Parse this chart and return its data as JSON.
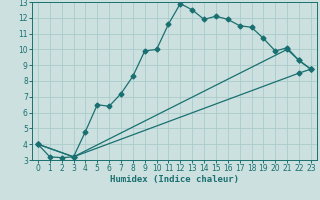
{
  "xlabel": "Humidex (Indice chaleur)",
  "bg_color": "#cce0e0",
  "grid_color": "#aacccc",
  "line_color": "#1a7070",
  "spine_color": "#1a7070",
  "xlim": [
    -0.5,
    23.5
  ],
  "ylim": [
    3,
    13
  ],
  "xticks": [
    0,
    1,
    2,
    3,
    4,
    5,
    6,
    7,
    8,
    9,
    10,
    11,
    12,
    13,
    14,
    15,
    16,
    17,
    18,
    19,
    20,
    21,
    22,
    23
  ],
  "yticks": [
    3,
    4,
    5,
    6,
    7,
    8,
    9,
    10,
    11,
    12,
    13
  ],
  "line1_x": [
    0,
    1,
    2,
    3,
    4,
    5,
    6,
    7,
    8,
    9,
    10,
    11,
    12,
    13,
    14,
    15,
    16,
    17,
    18,
    19,
    20,
    21,
    22,
    23
  ],
  "line1_y": [
    4.0,
    3.2,
    3.15,
    3.2,
    4.8,
    6.5,
    6.4,
    7.2,
    8.3,
    9.9,
    10.0,
    11.6,
    12.9,
    12.5,
    11.9,
    12.1,
    11.9,
    11.5,
    11.4,
    10.7,
    9.9,
    10.1,
    9.3,
    8.75
  ],
  "line2_x": [
    0,
    3,
    22,
    23
  ],
  "line2_y": [
    4.0,
    3.2,
    8.5,
    8.75
  ],
  "line3_x": [
    0,
    3,
    21,
    22,
    23
  ],
  "line3_y": [
    4.0,
    3.2,
    10.0,
    9.3,
    8.75
  ],
  "marker_size": 2.5,
  "line_width": 0.9,
  "tick_fontsize": 5.5,
  "xlabel_fontsize": 6.5
}
